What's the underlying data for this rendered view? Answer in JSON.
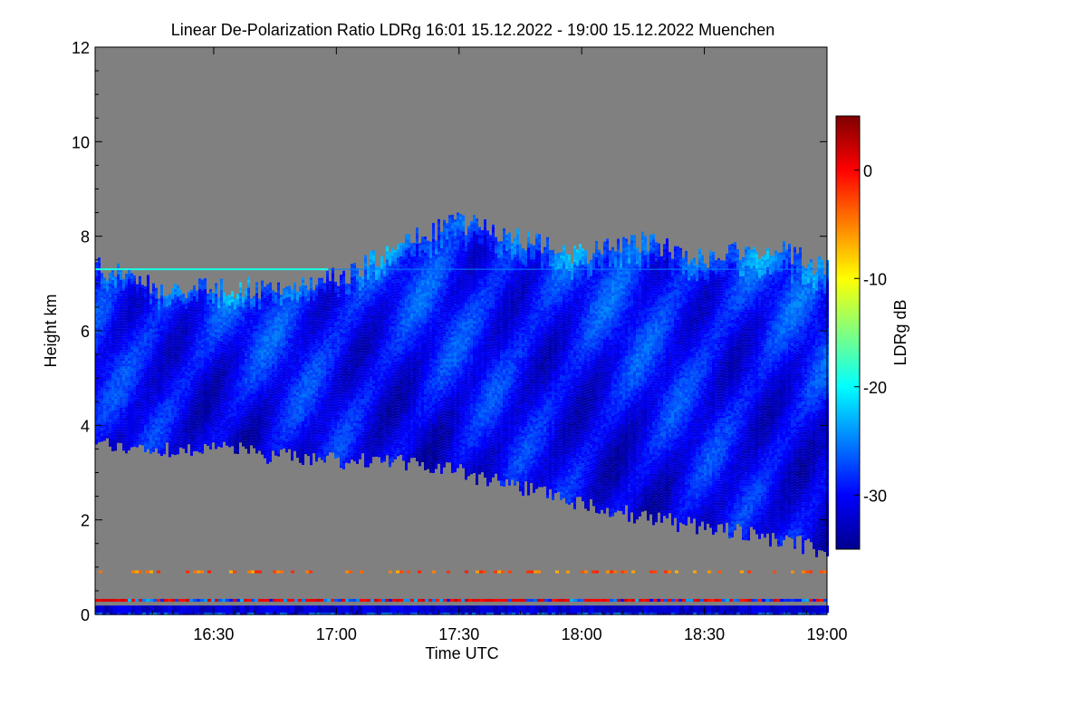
{
  "chart_data": {
    "type": "heatmap",
    "title": "Linear De-Polarization Ratio LDRg   16:01 15.12.2022 - 19:00 15.12.2022 Muenchen",
    "xlabel": "Time UTC",
    "ylabel": "Height km",
    "colorbar_label": "LDRg dB",
    "x_range_minutes_utc": [
      961,
      1140
    ],
    "y_range_km": [
      0,
      12
    ],
    "x_ticks": [
      {
        "label": "16:30",
        "value": 990
      },
      {
        "label": "17:00",
        "value": 1020
      },
      {
        "label": "17:30",
        "value": 1050
      },
      {
        "label": "18:00",
        "value": 1080
      },
      {
        "label": "18:30",
        "value": 1110
      },
      {
        "label": "19:00",
        "value": 1140
      }
    ],
    "y_ticks": [
      {
        "label": "0",
        "value": 0
      },
      {
        "label": "2",
        "value": 2
      },
      {
        "label": "4",
        "value": 4
      },
      {
        "label": "6",
        "value": 6
      },
      {
        "label": "8",
        "value": 8
      },
      {
        "label": "10",
        "value": 10
      },
      {
        "label": "12",
        "value": 12
      }
    ],
    "colorbar_range_db": [
      -35,
      5
    ],
    "colorbar_ticks": [
      {
        "label": "0",
        "value": 0
      },
      {
        "label": "-10",
        "value": -10
      },
      {
        "label": "-20",
        "value": -20
      },
      {
        "label": "-30",
        "value": -30
      }
    ],
    "no_data_color": "#808080",
    "colormap": [
      "#00008f",
      "#0000ff",
      "#0080ff",
      "#00ffff",
      "#80ff80",
      "#ffff00",
      "#ff8000",
      "#ff0000",
      "#800000"
    ],
    "cloud_top_km": [
      {
        "t": 961,
        "h": 7.4
      },
      {
        "t": 975,
        "h": 6.9
      },
      {
        "t": 990,
        "h": 6.9
      },
      {
        "t": 1005,
        "h": 6.9
      },
      {
        "t": 1020,
        "h": 7.1
      },
      {
        "t": 1035,
        "h": 7.8
      },
      {
        "t": 1050,
        "h": 8.3
      },
      {
        "t": 1065,
        "h": 7.9
      },
      {
        "t": 1080,
        "h": 7.6
      },
      {
        "t": 1095,
        "h": 7.9
      },
      {
        "t": 1110,
        "h": 7.5
      },
      {
        "t": 1125,
        "h": 7.8
      },
      {
        "t": 1140,
        "h": 7.3
      }
    ],
    "cloud_base_km": [
      {
        "t": 961,
        "h": 3.6
      },
      {
        "t": 975,
        "h": 3.4
      },
      {
        "t": 990,
        "h": 3.5
      },
      {
        "t": 1005,
        "h": 3.3
      },
      {
        "t": 1020,
        "h": 3.2
      },
      {
        "t": 1035,
        "h": 3.2
      },
      {
        "t": 1050,
        "h": 3.0
      },
      {
        "t": 1065,
        "h": 2.6
      },
      {
        "t": 1080,
        "h": 2.3
      },
      {
        "t": 1095,
        "h": 2.0
      },
      {
        "t": 1110,
        "h": 1.8
      },
      {
        "t": 1125,
        "h": 1.6
      },
      {
        "t": 1140,
        "h": 1.3
      }
    ],
    "layer_line_km": 7.3,
    "near_ground_layers_km": [
      0.9,
      0.3,
      0.15
    ]
  }
}
